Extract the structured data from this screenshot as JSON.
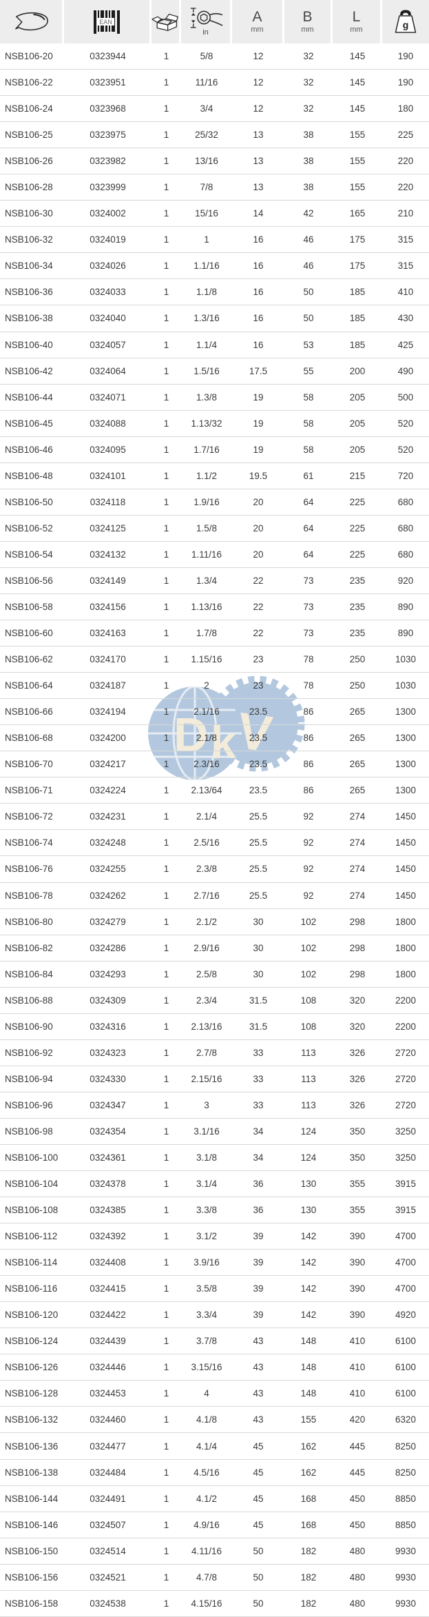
{
  "header": {
    "col1_icon": "wrench-profile-icon",
    "col2_icon": "ean-barcode-icon",
    "barcode_label": "EAN",
    "col3_icon": "package-box-icon",
    "col4_icon": "jaw-opening-icon",
    "col4_unit": "in",
    "col5": {
      "label": "A",
      "unit": "mm"
    },
    "col6": {
      "label": "B",
      "unit": "mm"
    },
    "col7": {
      "label": "L",
      "unit": "mm"
    },
    "col8_icon": "weight-icon",
    "col8_label": "g"
  },
  "watermark": {
    "text_d": "D",
    "text_k": "k",
    "text_v": "V"
  },
  "colors": {
    "header_bg": "#ededed",
    "row_divider": "#d8d8d8",
    "text": "#3a3a3a",
    "watermark_blue": "#a6bfd9",
    "watermark_cream": "#f2e9d4"
  },
  "table": {
    "columns": [
      "model",
      "article_number",
      "pack_qty",
      "size_in",
      "A_mm",
      "B_mm",
      "L_mm",
      "weight_g"
    ],
    "rows": [
      [
        "NSB106-20",
        "0323944",
        "1",
        "5/8",
        "12",
        "32",
        "145",
        "190"
      ],
      [
        "NSB106-22",
        "0323951",
        "1",
        "11/16",
        "12",
        "32",
        "145",
        "190"
      ],
      [
        "NSB106-24",
        "0323968",
        "1",
        "3/4",
        "12",
        "32",
        "145",
        "180"
      ],
      [
        "NSB106-25",
        "0323975",
        "1",
        "25/32",
        "13",
        "38",
        "155",
        "225"
      ],
      [
        "NSB106-26",
        "0323982",
        "1",
        "13/16",
        "13",
        "38",
        "155",
        "220"
      ],
      [
        "NSB106-28",
        "0323999",
        "1",
        "7/8",
        "13",
        "38",
        "155",
        "220"
      ],
      [
        "NSB106-30",
        "0324002",
        "1",
        "15/16",
        "14",
        "42",
        "165",
        "210"
      ],
      [
        "NSB106-32",
        "0324019",
        "1",
        "1",
        "16",
        "46",
        "175",
        "315"
      ],
      [
        "NSB106-34",
        "0324026",
        "1",
        "1.1/16",
        "16",
        "46",
        "175",
        "315"
      ],
      [
        "NSB106-36",
        "0324033",
        "1",
        "1.1/8",
        "16",
        "50",
        "185",
        "410"
      ],
      [
        "NSB106-38",
        "0324040",
        "1",
        "1.3/16",
        "16",
        "50",
        "185",
        "430"
      ],
      [
        "NSB106-40",
        "0324057",
        "1",
        "1.1/4",
        "16",
        "53",
        "185",
        "425"
      ],
      [
        "NSB106-42",
        "0324064",
        "1",
        "1.5/16",
        "17.5",
        "55",
        "200",
        "490"
      ],
      [
        "NSB106-44",
        "0324071",
        "1",
        "1.3/8",
        "19",
        "58",
        "205",
        "500"
      ],
      [
        "NSB106-45",
        "0324088",
        "1",
        "1.13/32",
        "19",
        "58",
        "205",
        "520"
      ],
      [
        "NSB106-46",
        "0324095",
        "1",
        "1.7/16",
        "19",
        "58",
        "205",
        "520"
      ],
      [
        "NSB106-48",
        "0324101",
        "1",
        "1.1/2",
        "19.5",
        "61",
        "215",
        "720"
      ],
      [
        "NSB106-50",
        "0324118",
        "1",
        "1.9/16",
        "20",
        "64",
        "225",
        "680"
      ],
      [
        "NSB106-52",
        "0324125",
        "1",
        "1.5/8",
        "20",
        "64",
        "225",
        "680"
      ],
      [
        "NSB106-54",
        "0324132",
        "1",
        "1.11/16",
        "20",
        "64",
        "225",
        "680"
      ],
      [
        "NSB106-56",
        "0324149",
        "1",
        "1.3/4",
        "22",
        "73",
        "235",
        "920"
      ],
      [
        "NSB106-58",
        "0324156",
        "1",
        "1.13/16",
        "22",
        "73",
        "235",
        "890"
      ],
      [
        "NSB106-60",
        "0324163",
        "1",
        "1.7/8",
        "22",
        "73",
        "235",
        "890"
      ],
      [
        "NSB106-62",
        "0324170",
        "1",
        "1.15/16",
        "23",
        "78",
        "250",
        "1030"
      ],
      [
        "NSB106-64",
        "0324187",
        "1",
        "2",
        "23",
        "78",
        "250",
        "1030"
      ],
      [
        "NSB106-66",
        "0324194",
        "1",
        "2.1/16",
        "23.5",
        "86",
        "265",
        "1300"
      ],
      [
        "NSB106-68",
        "0324200",
        "1",
        "2.1/8",
        "23.5",
        "86",
        "265",
        "1300"
      ],
      [
        "NSB106-70",
        "0324217",
        "1",
        "2.3/16",
        "23.5",
        "86",
        "265",
        "1300"
      ],
      [
        "NSB106-71",
        "0324224",
        "1",
        "2.13/64",
        "23.5",
        "86",
        "265",
        "1300"
      ],
      [
        "NSB106-72",
        "0324231",
        "1",
        "2.1/4",
        "25.5",
        "92",
        "274",
        "1450"
      ],
      [
        "NSB106-74",
        "0324248",
        "1",
        "2.5/16",
        "25.5",
        "92",
        "274",
        "1450"
      ],
      [
        "NSB106-76",
        "0324255",
        "1",
        "2.3/8",
        "25.5",
        "92",
        "274",
        "1450"
      ],
      [
        "NSB106-78",
        "0324262",
        "1",
        "2.7/16",
        "25.5",
        "92",
        "274",
        "1450"
      ],
      [
        "NSB106-80",
        "0324279",
        "1",
        "2.1/2",
        "30",
        "102",
        "298",
        "1800"
      ],
      [
        "NSB106-82",
        "0324286",
        "1",
        "2.9/16",
        "30",
        "102",
        "298",
        "1800"
      ],
      [
        "NSB106-84",
        "0324293",
        "1",
        "2.5/8",
        "30",
        "102",
        "298",
        "1800"
      ],
      [
        "NSB106-88",
        "0324309",
        "1",
        "2.3/4",
        "31.5",
        "108",
        "320",
        "2200"
      ],
      [
        "NSB106-90",
        "0324316",
        "1",
        "2.13/16",
        "31.5",
        "108",
        "320",
        "2200"
      ],
      [
        "NSB106-92",
        "0324323",
        "1",
        "2.7/8",
        "33",
        "113",
        "326",
        "2720"
      ],
      [
        "NSB106-94",
        "0324330",
        "1",
        "2.15/16",
        "33",
        "113",
        "326",
        "2720"
      ],
      [
        "NSB106-96",
        "0324347",
        "1",
        "3",
        "33",
        "113",
        "326",
        "2720"
      ],
      [
        "NSB106-98",
        "0324354",
        "1",
        "3.1/16",
        "34",
        "124",
        "350",
        "3250"
      ],
      [
        "NSB106-100",
        "0324361",
        "1",
        "3.1/8",
        "34",
        "124",
        "350",
        "3250"
      ],
      [
        "NSB106-104",
        "0324378",
        "1",
        "3.1/4",
        "36",
        "130",
        "355",
        "3915"
      ],
      [
        "NSB106-108",
        "0324385",
        "1",
        "3.3/8",
        "36",
        "130",
        "355",
        "3915"
      ],
      [
        "NSB106-112",
        "0324392",
        "1",
        "3.1/2",
        "39",
        "142",
        "390",
        "4700"
      ],
      [
        "NSB106-114",
        "0324408",
        "1",
        "3.9/16",
        "39",
        "142",
        "390",
        "4700"
      ],
      [
        "NSB106-116",
        "0324415",
        "1",
        "3.5/8",
        "39",
        "142",
        "390",
        "4700"
      ],
      [
        "NSB106-120",
        "0324422",
        "1",
        "3.3/4",
        "39",
        "142",
        "390",
        "4920"
      ],
      [
        "NSB106-124",
        "0324439",
        "1",
        "3.7/8",
        "43",
        "148",
        "410",
        "6100"
      ],
      [
        "NSB106-126",
        "0324446",
        "1",
        "3.15/16",
        "43",
        "148",
        "410",
        "6100"
      ],
      [
        "NSB106-128",
        "0324453",
        "1",
        "4",
        "43",
        "148",
        "410",
        "6100"
      ],
      [
        "NSB106-132",
        "0324460",
        "1",
        "4.1/8",
        "43",
        "155",
        "420",
        "6320"
      ],
      [
        "NSB106-136",
        "0324477",
        "1",
        "4.1/4",
        "45",
        "162",
        "445",
        "8250"
      ],
      [
        "NSB106-138",
        "0324484",
        "1",
        "4.5/16",
        "45",
        "162",
        "445",
        "8250"
      ],
      [
        "NSB106-144",
        "0324491",
        "1",
        "4.1/2",
        "45",
        "168",
        "450",
        "8850"
      ],
      [
        "NSB106-146",
        "0324507",
        "1",
        "4.9/16",
        "45",
        "168",
        "450",
        "8850"
      ],
      [
        "NSB106-150",
        "0324514",
        "1",
        "4.11/16",
        "50",
        "182",
        "480",
        "9930"
      ],
      [
        "NSB106-156",
        "0324521",
        "1",
        "4.7/8",
        "50",
        "182",
        "480",
        "9930"
      ],
      [
        "NSB106-158",
        "0324538",
        "1",
        "4.15/16",
        "50",
        "182",
        "480",
        "9930"
      ]
    ]
  }
}
